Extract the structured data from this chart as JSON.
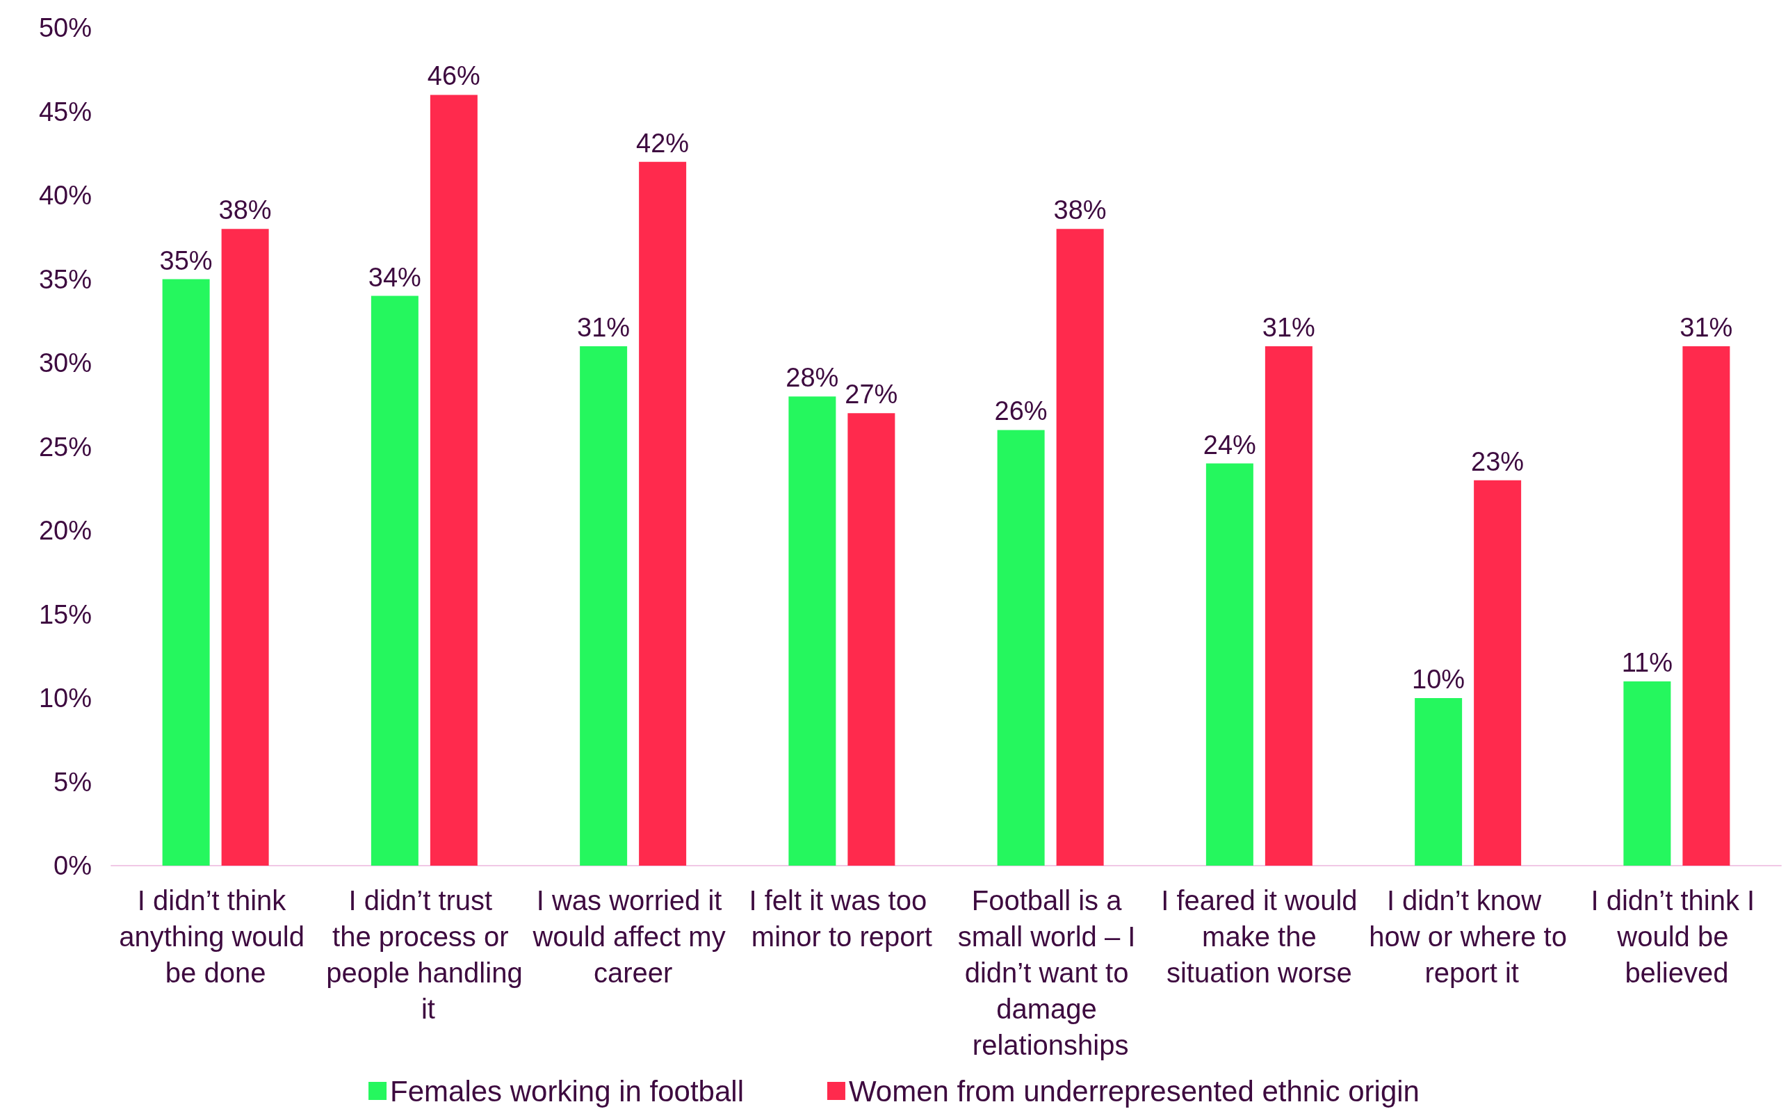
{
  "chart_data": {
    "type": "bar",
    "categories": [
      "I didn’t think anything would be done",
      "I didn’t trust the process or people handling it",
      "I was worried it would affect my career",
      "I felt it was too minor to report",
      "Football is a small world – I didn’t want to damage relationships",
      "I feared it would make the situation worse",
      "I didn’t know how or where to report it",
      "I didn’t think I would be believed"
    ],
    "series": [
      {
        "name": "Females working in football",
        "color": "#25f75e",
        "values": [
          35,
          34,
          31,
          28,
          26,
          24,
          10,
          11
        ],
        "value_labels": [
          "35%",
          "34%",
          "31%",
          "28%",
          "26%",
          "24%",
          "10%",
          "11%"
        ]
      },
      {
        "name": "Women from underrepresented ethnic origin",
        "color": "#ff2a4d",
        "values": [
          38,
          46,
          42,
          27,
          38,
          31,
          23,
          31
        ],
        "value_labels": [
          "38%",
          "46%",
          "42%",
          "27%",
          "38%",
          "31%",
          "23%",
          "31%"
        ]
      }
    ],
    "ylim": [
      0,
      50
    ],
    "yticks": [
      {
        "value": 0,
        "label": "0%"
      },
      {
        "value": 5,
        "label": "5%"
      },
      {
        "value": 10,
        "label": "10%"
      },
      {
        "value": 15,
        "label": "15%"
      },
      {
        "value": 20,
        "label": "20%"
      },
      {
        "value": 25,
        "label": "25%"
      },
      {
        "value": 30,
        "label": "30%"
      },
      {
        "value": 35,
        "label": "35%"
      },
      {
        "value": 40,
        "label": "40%"
      },
      {
        "value": 45,
        "label": "45%"
      },
      {
        "value": 50,
        "label": "50%"
      }
    ],
    "grid": false,
    "legend": "bottom"
  }
}
